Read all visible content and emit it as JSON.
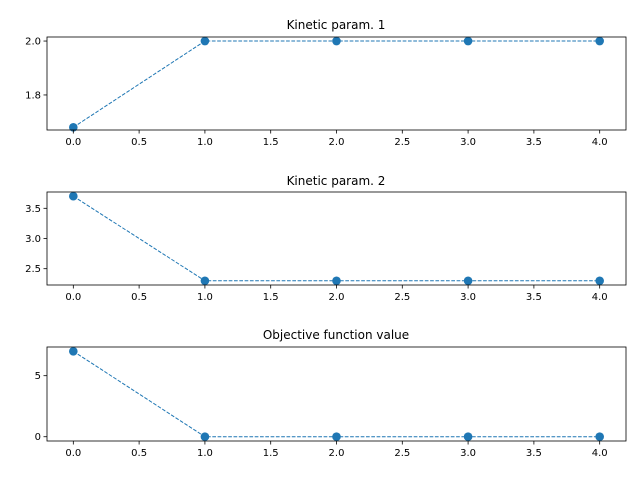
{
  "chart_data": [
    {
      "type": "line",
      "title": "Kinetic param. 1",
      "x": [
        0,
        1,
        2,
        3,
        4
      ],
      "series": [
        {
          "values": [
            1.68,
            2.0,
            2.0,
            2.0,
            2.0
          ]
        }
      ],
      "xlim": [
        -0.2,
        4.2
      ],
      "ylim": [
        1.67,
        2.015
      ],
      "xticks": [
        "0.0",
        "0.5",
        "1.0",
        "1.5",
        "2.0",
        "2.5",
        "3.0",
        "3.5",
        "4.0"
      ],
      "yticks": [
        "1.8",
        "2.0"
      ],
      "line_style": "dashed",
      "marker": "circle",
      "color": "#1f77b4",
      "grid": false,
      "xlabel": "",
      "ylabel": ""
    },
    {
      "type": "line",
      "title": "Kinetic param. 2",
      "x": [
        0,
        1,
        2,
        3,
        4
      ],
      "series": [
        {
          "values": [
            3.7,
            2.3,
            2.3,
            2.3,
            2.3
          ]
        }
      ],
      "xlim": [
        -0.2,
        4.2
      ],
      "ylim": [
        2.23,
        3.77
      ],
      "xticks": [
        "0.0",
        "0.5",
        "1.0",
        "1.5",
        "2.0",
        "2.5",
        "3.0",
        "3.5",
        "4.0"
      ],
      "yticks": [
        "2.5",
        "3.0",
        "3.5"
      ],
      "line_style": "dashed",
      "marker": "circle",
      "color": "#1f77b4",
      "grid": false,
      "xlabel": "",
      "ylabel": ""
    },
    {
      "type": "line",
      "title": "Objective function value",
      "x": [
        0,
        1,
        2,
        3,
        4
      ],
      "series": [
        {
          "values": [
            7.0,
            0.0,
            0.0,
            0.0,
            0.0
          ]
        }
      ],
      "xlim": [
        -0.2,
        4.2
      ],
      "ylim": [
        -0.35,
        7.35
      ],
      "xticks": [
        "0.0",
        "0.5",
        "1.0",
        "1.5",
        "2.0",
        "2.5",
        "3.0",
        "3.5",
        "4.0"
      ],
      "yticks": [
        "0",
        "5"
      ],
      "line_style": "dashed",
      "marker": "circle",
      "color": "#1f77b4",
      "grid": false,
      "xlabel": "",
      "ylabel": ""
    }
  ]
}
